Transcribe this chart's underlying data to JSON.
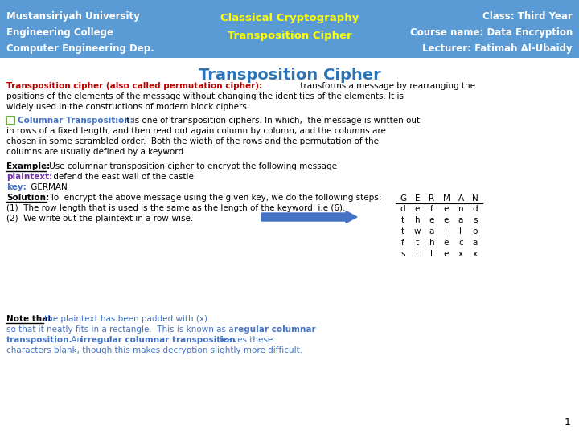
{
  "header_bg": "#5b9bd5",
  "header_text_color": "#ffffff",
  "header_yellow": "#ffff00",
  "header_left": [
    "Mustansiriyah University",
    "Engineering College",
    "Computer Engineering Dep."
  ],
  "header_center": [
    "Classical Cryptography",
    "Transposition Cipher"
  ],
  "header_right": [
    "Class: Third Year",
    "Course name: Data Encryption",
    "Lecturer: Fatimah Al-Ubaidy"
  ],
  "title": "Transposition Cipher",
  "title_color": "#2e74b5",
  "body_bg": "#ffffff",
  "red_bold": "#c00000",
  "green_box": "#70ad47",
  "blue_text": "#4472c4",
  "purple_text": "#7030a0",
  "arrow_color": "#4472c4",
  "table_header": [
    "G",
    "E",
    "R",
    "M",
    "A",
    "N"
  ],
  "table_rows": [
    [
      "d",
      "e",
      "f",
      "e",
      "n",
      "d"
    ],
    [
      "t",
      "h",
      "e",
      "e",
      "a",
      "s"
    ],
    [
      "t",
      "w",
      "a",
      "l",
      "l",
      "o"
    ],
    [
      "f",
      "t",
      "h",
      "e",
      "c",
      "a"
    ],
    [
      "s",
      "t",
      "l",
      "e",
      "x",
      "x"
    ]
  ],
  "page_number": "1"
}
